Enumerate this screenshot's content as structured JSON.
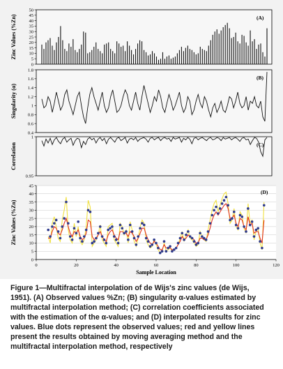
{
  "chart_data": [
    {
      "id": "A",
      "type": "bar",
      "panel_label": "(A)",
      "ylabel": "Zinc Values (%Zn)",
      "ylim": [
        0,
        50
      ],
      "yticks": [
        0,
        5,
        10,
        15,
        20,
        25,
        30,
        35,
        40,
        45,
        50
      ],
      "x": [
        6,
        7,
        8,
        9,
        10,
        11,
        12,
        13,
        14,
        15,
        16,
        17,
        18,
        19,
        20,
        21,
        22,
        23,
        24,
        25,
        26,
        27,
        28,
        29,
        30,
        31,
        32,
        33,
        34,
        35,
        36,
        37,
        38,
        39,
        40,
        41,
        42,
        43,
        44,
        45,
        46,
        47,
        48,
        49,
        50,
        51,
        52,
        53,
        54,
        55,
        56,
        57,
        58,
        59,
        60,
        61,
        62,
        63,
        64,
        65,
        66,
        67,
        68,
        69,
        70,
        71,
        72,
        73,
        74,
        75,
        76,
        77,
        78,
        79,
        80,
        81,
        82,
        83,
        84,
        85,
        86,
        87,
        88,
        89,
        90,
        91,
        92,
        93,
        94,
        95,
        96,
        97,
        98,
        99,
        100,
        101,
        102,
        103,
        104,
        105,
        106,
        107,
        108,
        109,
        110,
        111,
        112,
        113,
        114
      ],
      "values": [
        18,
        14,
        20,
        22,
        24,
        17,
        13,
        20,
        25,
        35,
        22,
        14,
        12,
        19,
        16,
        23,
        13,
        11,
        14,
        18,
        30,
        29,
        10,
        11,
        13,
        16,
        20,
        14,
        12,
        10,
        18,
        19,
        20,
        14,
        12,
        10,
        21,
        19,
        16,
        17,
        12,
        21,
        17,
        13,
        9,
        14,
        19,
        22,
        21,
        13,
        11,
        8,
        9,
        12,
        10,
        7,
        4,
        5,
        11,
        5,
        7,
        8,
        5,
        6,
        7,
        10,
        13,
        16,
        12,
        15,
        17,
        14,
        13,
        11,
        9,
        10,
        16,
        14,
        13,
        12,
        17,
        22,
        27,
        30,
        32,
        28,
        31,
        34,
        36,
        38,
        33,
        24,
        25,
        29,
        21,
        19,
        27,
        26,
        20,
        17,
        31,
        21,
        23,
        14,
        18,
        19,
        11,
        7,
        33
      ]
    },
    {
      "id": "B",
      "type": "line",
      "panel_label": "(B)",
      "ylabel": "Singularity (α)",
      "ylim": [
        0.4,
        1.8
      ],
      "yticks": [
        0.4,
        0.6,
        0.8,
        1,
        1.2,
        1.4,
        1.6,
        1.8
      ],
      "x": [
        6,
        7,
        8,
        9,
        10,
        11,
        12,
        13,
        14,
        15,
        16,
        17,
        18,
        19,
        20,
        21,
        22,
        23,
        24,
        25,
        26,
        27,
        28,
        29,
        30,
        31,
        32,
        33,
        34,
        35,
        36,
        37,
        38,
        39,
        40,
        41,
        42,
        43,
        44,
        45,
        46,
        47,
        48,
        49,
        50,
        51,
        52,
        53,
        54,
        55,
        56,
        57,
        58,
        59,
        60,
        61,
        62,
        63,
        64,
        65,
        66,
        67,
        68,
        69,
        70,
        71,
        72,
        73,
        74,
        75,
        76,
        77,
        78,
        79,
        80,
        81,
        82,
        83,
        84,
        85,
        86,
        87,
        88,
        89,
        90,
        91,
        92,
        93,
        94,
        95,
        96,
        97,
        98,
        99,
        100,
        101,
        102,
        103,
        104,
        105,
        106,
        107,
        108,
        109,
        110,
        111,
        112,
        113,
        114
      ],
      "values": [
        1.15,
        0.95,
        1.0,
        1.2,
        1.1,
        0.85,
        1.05,
        1.3,
        1.1,
        0.9,
        1.0,
        1.25,
        1.35,
        1.1,
        0.95,
        0.8,
        1.0,
        1.2,
        1.3,
        1.0,
        0.75,
        0.6,
        0.95,
        1.25,
        1.4,
        1.2,
        1.05,
        0.9,
        1.1,
        1.3,
        1.0,
        0.85,
        0.95,
        1.2,
        1.35,
        1.1,
        0.85,
        0.9,
        1.0,
        1.2,
        1.35,
        1.25,
        1.0,
        0.9,
        1.1,
        1.3,
        1.05,
        0.9,
        1.2,
        1.45,
        1.25,
        1.05,
        0.85,
        1.0,
        1.2,
        1.1,
        1.35,
        1.2,
        0.95,
        0.85,
        1.05,
        1.25,
        1.1,
        0.9,
        1.0,
        1.15,
        1.3,
        1.0,
        0.85,
        0.95,
        1.2,
        1.1,
        0.8,
        0.9,
        1.1,
        1.25,
        1.05,
        0.95,
        1.2,
        1.1,
        0.9,
        0.75,
        0.95,
        1.05,
        0.85,
        0.95,
        1.1,
        0.9,
        0.85,
        1.0,
        1.2,
        1.15,
        0.95,
        1.1,
        1.3,
        1.05,
        0.95,
        1.0,
        1.2,
        0.9,
        1.1,
        1.05,
        1.2,
        1.0,
        0.95,
        1.1,
        0.75,
        0.65,
        1.75
      ]
    },
    {
      "id": "C",
      "type": "line",
      "panel_label": "(C)",
      "ylabel": "Correlation",
      "ylim": [
        0.95,
        1
      ],
      "yticks": [
        0.95,
        1
      ],
      "x": [
        6,
        7,
        8,
        9,
        10,
        11,
        12,
        13,
        14,
        15,
        16,
        17,
        18,
        19,
        20,
        21,
        22,
        23,
        24,
        25,
        26,
        27,
        28,
        29,
        30,
        31,
        32,
        33,
        34,
        35,
        36,
        37,
        38,
        39,
        40,
        41,
        42,
        43,
        44,
        45,
        46,
        47,
        48,
        49,
        50,
        51,
        52,
        53,
        54,
        55,
        56,
        57,
        58,
        59,
        60,
        61,
        62,
        63,
        64,
        65,
        66,
        67,
        68,
        69,
        70,
        71,
        72,
        73,
        74,
        75,
        76,
        77,
        78,
        79,
        80,
        81,
        82,
        83,
        84,
        85,
        86,
        87,
        88,
        89,
        90,
        91,
        92,
        93,
        94,
        95,
        96,
        97,
        98,
        99,
        100,
        101,
        102,
        103,
        104,
        105,
        106,
        107,
        108,
        109,
        110,
        111,
        112,
        113,
        114
      ],
      "values": [
        0.995,
        0.988,
        0.997,
        0.992,
        0.998,
        0.99,
        0.996,
        0.999,
        0.994,
        0.991,
        0.997,
        0.999,
        0.993,
        0.996,
        0.998,
        0.989,
        0.995,
        0.998,
        0.997,
        0.986,
        0.994,
        0.99,
        0.997,
        0.999,
        0.996,
        0.998,
        0.992,
        0.997,
        0.999,
        0.995,
        0.998,
        0.991,
        0.997,
        0.999,
        0.996,
        0.993,
        0.998,
        0.999,
        0.995,
        0.997,
        0.999,
        0.992,
        0.997,
        0.998,
        0.996,
        0.999,
        0.994,
        0.997,
        0.998,
        0.999,
        0.997,
        0.993,
        0.998,
        0.999,
        0.996,
        0.998,
        0.999,
        0.995,
        0.998,
        0.999,
        0.997,
        0.998,
        0.994,
        0.999,
        0.997,
        0.998,
        0.999,
        0.993,
        0.998,
        0.996,
        0.999,
        0.997,
        0.991,
        0.998,
        0.999,
        0.996,
        0.998,
        0.999,
        0.997,
        0.995,
        0.998,
        0.999,
        0.996,
        0.997,
        0.999,
        0.998,
        0.995,
        0.999,
        0.997,
        0.998,
        0.999,
        0.996,
        0.998,
        0.999,
        0.997,
        0.994,
        0.998,
        0.999,
        0.996,
        0.997,
        0.99,
        0.995,
        0.999,
        0.998,
        0.993,
        0.981,
        0.975,
        0.996,
        0.999
      ]
    },
    {
      "id": "D",
      "type": "line",
      "panel_label": "(D)",
      "ylabel": "Zinc Values (%Zn)",
      "xlabel": "Sample Location",
      "xlim": [
        0,
        120
      ],
      "xticks": [
        0,
        20,
        40,
        60,
        80,
        100,
        120
      ],
      "ylim": [
        0,
        45
      ],
      "yticks": [
        0,
        5,
        10,
        15,
        20,
        25,
        30,
        35,
        40,
        45
      ],
      "x": [
        6,
        7,
        8,
        9,
        10,
        11,
        12,
        13,
        14,
        15,
        16,
        17,
        18,
        19,
        20,
        21,
        22,
        23,
        24,
        25,
        26,
        27,
        28,
        29,
        30,
        31,
        32,
        33,
        34,
        35,
        36,
        37,
        38,
        39,
        40,
        41,
        42,
        43,
        44,
        45,
        46,
        47,
        48,
        49,
        50,
        51,
        52,
        53,
        54,
        55,
        56,
        57,
        58,
        59,
        60,
        61,
        62,
        63,
        64,
        65,
        66,
        67,
        68,
        69,
        70,
        71,
        72,
        73,
        74,
        75,
        76,
        77,
        78,
        79,
        80,
        81,
        82,
        83,
        84,
        85,
        86,
        87,
        88,
        89,
        90,
        91,
        92,
        93,
        94,
        95,
        96,
        97,
        98,
        99,
        100,
        101,
        102,
        103,
        104,
        105,
        106,
        107,
        108,
        109,
        110,
        111,
        112,
        113,
        114
      ],
      "series": [
        {
          "style": "dots",
          "color": "#2e3a8c",
          "values": [
            18,
            14,
            20,
            22,
            24,
            17,
            13,
            20,
            25,
            35,
            22,
            14,
            12,
            19,
            16,
            23,
            13,
            11,
            14,
            18,
            30,
            29,
            10,
            11,
            13,
            16,
            20,
            14,
            12,
            10,
            18,
            19,
            20,
            14,
            12,
            10,
            21,
            19,
            16,
            17,
            12,
            21,
            17,
            13,
            9,
            14,
            19,
            22,
            21,
            13,
            11,
            8,
            9,
            12,
            10,
            7,
            4,
            5,
            11,
            5,
            7,
            8,
            5,
            6,
            7,
            10,
            13,
            16,
            12,
            15,
            17,
            14,
            13,
            11,
            9,
            10,
            16,
            14,
            13,
            12,
            17,
            22,
            27,
            30,
            32,
            28,
            31,
            34,
            36,
            38,
            33,
            24,
            25,
            29,
            21,
            19,
            27,
            26,
            20,
            17,
            31,
            21,
            23,
            14,
            18,
            19,
            11,
            7,
            33
          ]
        },
        {
          "style": "line",
          "color": "#f0e040",
          "values": [
            14,
            10,
            22,
            26,
            20,
            13,
            11,
            24,
            30,
            38,
            18,
            12,
            10,
            22,
            14,
            20,
            11,
            9,
            12,
            20,
            36,
            32,
            8,
            10,
            12,
            15,
            21,
            12,
            10,
            8,
            20,
            21,
            22,
            12,
            10,
            8,
            22,
            20,
            15,
            18,
            10,
            23,
            18,
            11,
            8,
            13,
            20,
            24,
            22,
            12,
            9,
            7,
            8,
            12,
            9,
            6,
            4,
            5,
            10,
            5,
            6,
            7,
            5,
            6,
            7,
            9,
            13,
            17,
            11,
            15,
            18,
            13,
            12,
            10,
            8,
            9,
            17,
            14,
            12,
            11,
            18,
            24,
            30,
            34,
            36,
            29,
            33,
            37,
            40,
            41,
            34,
            22,
            24,
            31,
            20,
            18,
            29,
            27,
            19,
            16,
            34,
            22,
            24,
            12,
            17,
            19,
            10,
            6,
            35
          ]
        },
        {
          "style": "line",
          "color": "#e03020",
          "values": [
            13,
            13,
            17,
            20,
            19,
            16,
            15,
            18,
            22,
            25,
            20,
            16,
            14,
            17,
            16,
            18,
            14,
            12,
            13,
            16,
            24,
            23,
            14,
            12,
            13,
            15,
            17,
            14,
            12,
            11,
            15,
            17,
            18,
            15,
            13,
            12,
            17,
            17,
            16,
            16,
            14,
            17,
            16,
            14,
            11,
            13,
            16,
            19,
            19,
            15,
            12,
            10,
            9,
            11,
            10,
            8,
            6,
            6,
            9,
            7,
            7,
            7,
            6,
            6,
            7,
            9,
            11,
            14,
            12,
            13,
            15,
            14,
            13,
            12,
            10,
            10,
            13,
            13,
            12,
            12,
            15,
            19,
            24,
            27,
            29,
            27,
            29,
            31,
            33,
            34,
            31,
            25,
            25,
            27,
            22,
            20,
            25,
            24,
            20,
            18,
            26,
            21,
            22,
            16,
            17,
            17,
            13,
            10,
            24
          ]
        }
      ]
    }
  ],
  "caption": {
    "lines": [
      "Figure 1—Multifractal interpolation of de Wijs's zinc values (de Wijs,",
      "1951). (A) Observed values %Zn; (B) singularity α-values estimated by",
      "multifractal interpolation method; (C) correlation coefficients associated",
      "with the estimation of the α-values; and (D) interpolated results for zinc",
      "values. Blue dots represent the observed values; red and yellow lines",
      "present the results obtained by moving averaging method and the",
      "multifractal interpolation method, respectively"
    ]
  }
}
